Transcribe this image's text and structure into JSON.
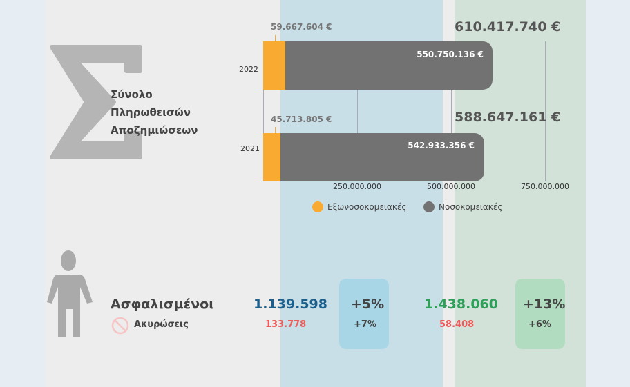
{
  "title_lines": [
    "Σύνολο",
    "Πληρωθεισών",
    "Αποζημιώσεων"
  ],
  "chart_data": {
    "type": "bar",
    "orientation": "horizontal",
    "stacked": true,
    "categories": [
      "2022",
      "2021"
    ],
    "series": [
      {
        "name": "Εξωνοσοκομειακές",
        "color": "#f8ab30",
        "values": [
          59667604,
          45713805
        ],
        "labels": [
          "59.667.604 €",
          "45.713.805 €"
        ]
      },
      {
        "name": "Νοσοκομειακές",
        "color": "#727272",
        "values": [
          550750136,
          542933356
        ],
        "labels": [
          "550.750.136 €",
          "542.933.356 €"
        ]
      }
    ],
    "totals": [
      "610.417.740 €",
      "588.647.161 €"
    ],
    "xlim": [
      0,
      750000000
    ],
    "xticks": [
      "250.000.000",
      "500.000.000",
      "750.000.000"
    ],
    "grid": true,
    "legend": "bottom"
  },
  "stats": {
    "insured_label": "Ασφαλισμένοι",
    "cancel_label": "Ακυρώσεις",
    "col2021": {
      "insured": "1.139.598",
      "insured_change": "+5%",
      "cancel": "133.778",
      "cancel_change": "+7%"
    },
    "col2022": {
      "insured": "1.438.060",
      "insured_change": "+13%",
      "cancel": "58.408",
      "cancel_change": "+6%"
    }
  },
  "colors": {
    "blue_value": "#1b5f8c",
    "green_value": "#2ea05a",
    "red_value": "#f05a5a"
  }
}
